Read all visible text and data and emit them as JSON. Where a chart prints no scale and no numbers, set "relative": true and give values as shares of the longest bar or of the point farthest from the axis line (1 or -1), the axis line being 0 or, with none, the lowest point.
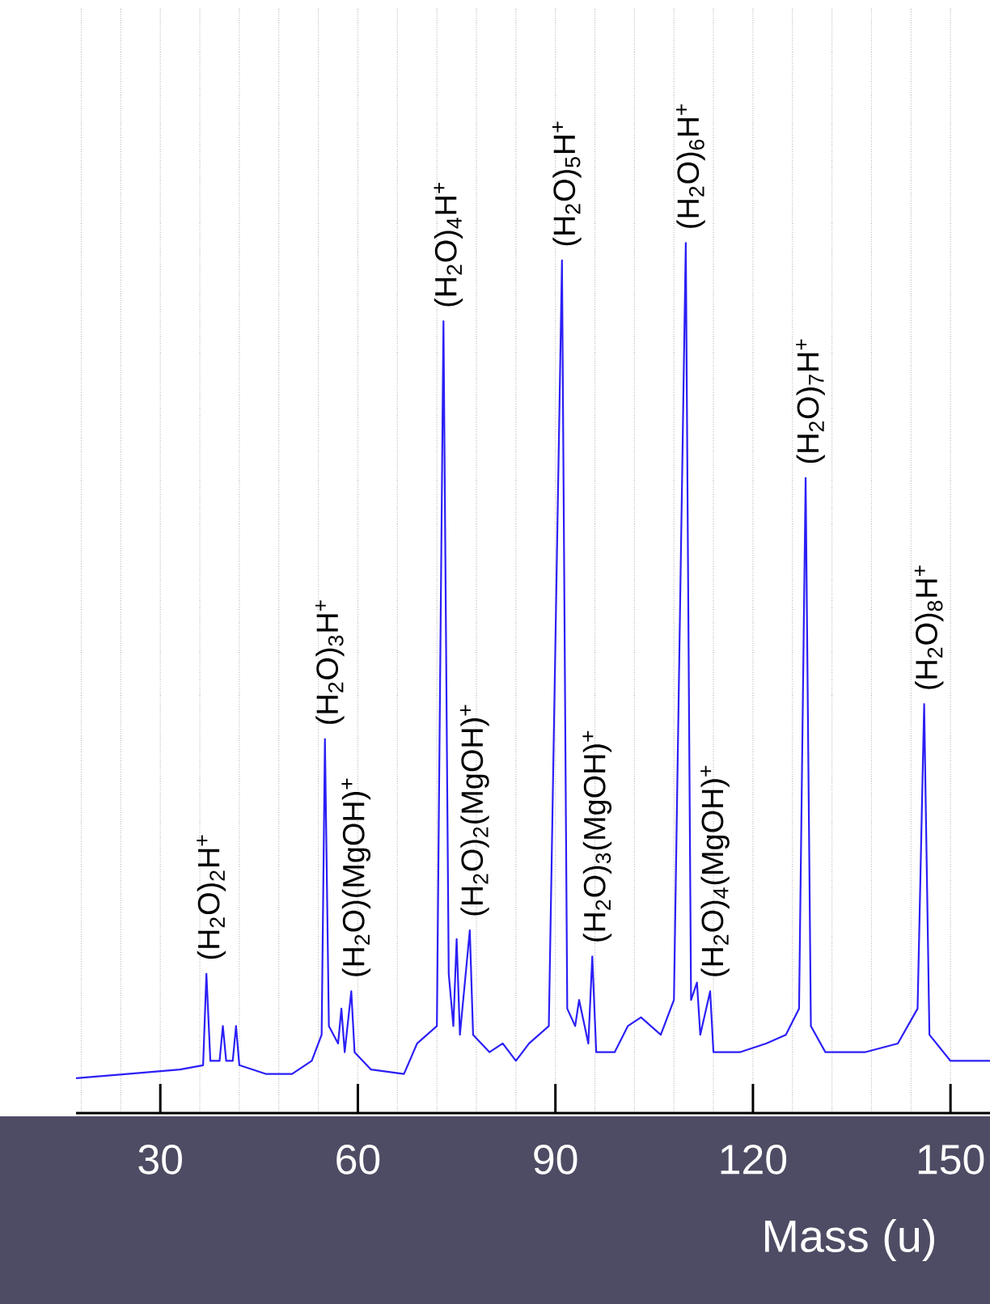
{
  "chart_data": {
    "type": "line",
    "relative": true,
    "xlabel": "Mass (u)",
    "xlim": [
      17.2,
      156
    ],
    "xticks": [
      {
        "value": 18,
        "label": null
      },
      {
        "value": 24,
        "label": null
      },
      30,
      {
        "value": 36,
        "label": null
      },
      {
        "value": 42,
        "label": null
      },
      {
        "value": 48,
        "label": null
      },
      {
        "value": 54,
        "label": null
      },
      60,
      {
        "value": 66,
        "label": null
      },
      {
        "value": 72,
        "label": null
      },
      {
        "value": 78,
        "label": null
      },
      {
        "value": 84,
        "label": null
      },
      90,
      {
        "value": 96,
        "label": null
      },
      {
        "value": 102,
        "label": null
      },
      {
        "value": 108,
        "label": null
      },
      {
        "value": 114,
        "label": null
      },
      120,
      {
        "value": 126,
        "label": null
      },
      {
        "value": 132,
        "label": null
      },
      {
        "value": 138,
        "label": null
      },
      {
        "value": 144,
        "label": null
      },
      150
    ],
    "grid": "x",
    "series": [
      {
        "color": "#2b1ff5",
        "x": [
          17.2,
          25,
          33,
          36.5,
          37,
          37.6,
          39,
          39.5,
          40,
          41,
          41.5,
          42,
          46,
          50,
          53,
          54.5,
          55,
          55.6,
          57,
          57.5,
          58,
          59,
          59.5,
          62,
          67,
          69,
          72,
          73,
          73.8,
          74.5,
          75,
          75.5,
          77,
          77.5,
          80,
          82,
          84,
          86,
          89,
          91,
          91.8,
          93,
          93.6,
          95,
          95.6,
          96.2,
          99,
          101,
          103,
          106,
          108,
          109.8,
          110.6,
          111.5,
          112,
          113.5,
          114,
          118,
          122,
          125,
          127,
          128,
          128.8,
          131,
          137,
          142,
          145,
          146,
          146.8,
          150,
          156
        ],
        "values": [
          0.04,
          0.045,
          0.05,
          0.055,
          0.16,
          0.06,
          0.06,
          0.1,
          0.06,
          0.06,
          0.1,
          0.055,
          0.045,
          0.045,
          0.06,
          0.09,
          0.43,
          0.1,
          0.08,
          0.12,
          0.07,
          0.14,
          0.07,
          0.05,
          0.045,
          0.08,
          0.1,
          0.91,
          0.16,
          0.1,
          0.2,
          0.09,
          0.21,
          0.09,
          0.07,
          0.08,
          0.06,
          0.08,
          0.1,
          0.98,
          0.12,
          0.1,
          0.13,
          0.08,
          0.18,
          0.07,
          0.07,
          0.1,
          0.11,
          0.09,
          0.13,
          1.0,
          0.13,
          0.15,
          0.09,
          0.14,
          0.07,
          0.07,
          0.08,
          0.09,
          0.12,
          0.73,
          0.1,
          0.07,
          0.07,
          0.08,
          0.12,
          0.47,
          0.09,
          0.06,
          0.06
        ]
      }
    ],
    "annotations": [
      {
        "text": "(H$_{2}$O)$_{2}$H$^{+}$",
        "x": 37,
        "y": 0.16
      },
      {
        "text": "(H$_{2}$O)$_{3}$H$^{+}$",
        "x": 55,
        "y": 0.43
      },
      {
        "text": "(H$_{2}$O)(MgOH)$^{+}$",
        "x": 59,
        "y": 0.14
      },
      {
        "text": "(H$_{2}$O)$_{4}$H$^{+}$",
        "x": 73,
        "y": 0.91
      },
      {
        "text": "(H$_{2}$O)$_{2}$(MgOH)$^{+}$",
        "x": 77,
        "y": 0.21
      },
      {
        "text": "(H$_{2}$O)$_{5}$H$^{+}$",
        "x": 91,
        "y": 0.98
      },
      {
        "text": "(H$_{2}$O)$_{3}$(MgOH)$^{+}$",
        "x": 95.6,
        "y": 0.18
      },
      {
        "text": "(H$_{2}$O)$_{6}$H$^{+}$",
        "x": 109.8,
        "y": 1.0
      },
      {
        "text": "(H$_{2}$O)$_{4}$(MgOH)$^{+}$",
        "x": 113.5,
        "y": 0.14
      },
      {
        "text": "(H$_{2}$O)$_{7}$H$^{+}$",
        "x": 128,
        "y": 0.73
      },
      {
        "text": "(H$_{2}$O)$_{8}$H$^{+}$",
        "x": 146,
        "y": 0.47
      }
    ]
  }
}
